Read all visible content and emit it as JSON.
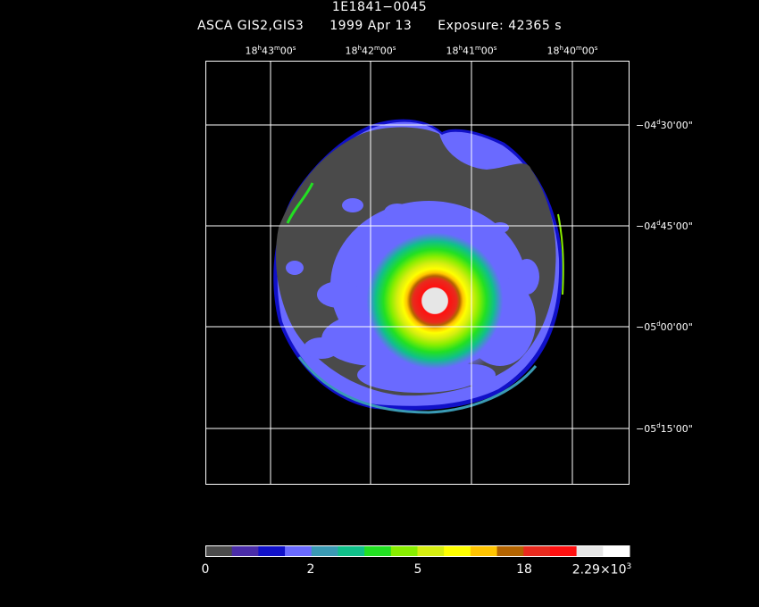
{
  "header": {
    "object": "1E1841−0045",
    "mission": "ASCA GIS2,GIS3",
    "date": "1999 Apr 13",
    "exposure": "Exposure: 42365 s"
  },
  "ra_ticks": [
    {
      "h": "18",
      "m": "43",
      "s": "00"
    },
    {
      "h": "18",
      "m": "42",
      "s": "00"
    },
    {
      "h": "18",
      "m": "41",
      "s": "00"
    },
    {
      "h": "18",
      "m": "40",
      "s": "00"
    }
  ],
  "dec_ticks": [
    {
      "sign": "−04",
      "d": "30",
      "m": "00"
    },
    {
      "sign": "−04",
      "d": "45",
      "m": "00"
    },
    {
      "sign": "−05",
      "d": "00",
      "m": "00"
    },
    {
      "sign": "−05",
      "d": "15",
      "m": "00"
    }
  ],
  "colorbar": {
    "colors": [
      "#4a4a4a",
      "#4a2ca8",
      "#1010c8",
      "#6a6aff",
      "#3a9ab4",
      "#10c08a",
      "#22e022",
      "#88ee00",
      "#d6ee10",
      "#ffff00",
      "#ffc400",
      "#b46400",
      "#e82a1e",
      "#ff1010",
      "#e6e6e6",
      "#ffffff"
    ],
    "labels": [
      "0",
      "2",
      "5",
      "18"
    ],
    "max_mantissa": "2.29×10",
    "max_exponent": "3"
  }
}
